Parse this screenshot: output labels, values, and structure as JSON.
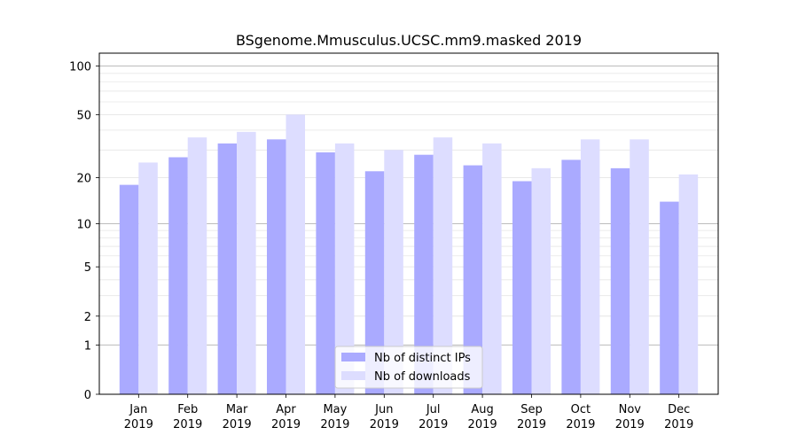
{
  "chart_data": {
    "type": "bar",
    "title": "BSgenome.Mmusculus.UCSC.mm9.masked 2019",
    "xlabel": "",
    "ylabel": "",
    "yscale": "log1p",
    "ylim": [
      0,
      120
    ],
    "yticks": [
      0,
      1,
      2,
      5,
      10,
      20,
      50,
      100
    ],
    "ytick_labels": [
      "0",
      "1",
      "2",
      "5",
      "10",
      "20",
      "50",
      "100"
    ],
    "categories": [
      "Jan 2019",
      "Feb 2019",
      "Mar 2019",
      "Apr 2019",
      "May 2019",
      "Jun 2019",
      "Jul 2019",
      "Aug 2019",
      "Sep 2019",
      "Oct 2019",
      "Nov 2019",
      "Dec 2019"
    ],
    "category_lines": [
      [
        "Jan",
        "2019"
      ],
      [
        "Feb",
        "2019"
      ],
      [
        "Mar",
        "2019"
      ],
      [
        "Apr",
        "2019"
      ],
      [
        "May",
        "2019"
      ],
      [
        "Jun",
        "2019"
      ],
      [
        "Jul",
        "2019"
      ],
      [
        "Aug",
        "2019"
      ],
      [
        "Sep",
        "2019"
      ],
      [
        "Oct",
        "2019"
      ],
      [
        "Nov",
        "2019"
      ],
      [
        "Dec",
        "2019"
      ]
    ],
    "series": [
      {
        "name": "Nb of distinct IPs",
        "color": "#aaaaff",
        "values": [
          18,
          27,
          33,
          35,
          29,
          22,
          28,
          24,
          19,
          26,
          23,
          14
        ]
      },
      {
        "name": "Nb of downloads",
        "color": "#ddddff",
        "values": [
          25,
          36,
          39,
          50,
          33,
          30,
          36,
          33,
          23,
          35,
          35,
          21
        ]
      }
    ],
    "legend": "bottom-center",
    "grid": true
  }
}
